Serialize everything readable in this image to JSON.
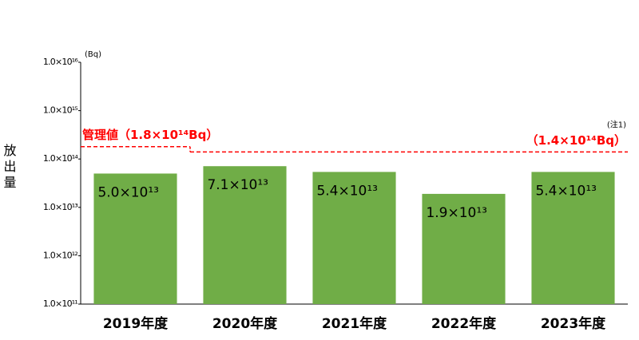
{
  "chart_data": {
    "type": "bar",
    "y_label": "放出量",
    "unit": "(Bq)",
    "log_y": true,
    "categories": [
      "2019年度",
      "2020年度",
      "2021年度",
      "2022年度",
      "2023年度"
    ],
    "values": [
      50000000000000.0,
      71000000000000.0,
      54000000000000.0,
      19000000000000.0,
      54000000000000.0
    ],
    "value_labels": [
      "5.0×10¹³",
      "7.1×10¹³",
      "5.4×10¹³",
      "1.9×10¹³",
      "5.4×10¹³"
    ],
    "color": "#70ad47",
    "ylim": [
      100000000000.0,
      1e+16
    ],
    "yticks": [
      {
        "value": 100000000000.0,
        "label": "1.0×10¹¹"
      },
      {
        "value": 1000000000000.0,
        "label": "1.0×10¹²"
      },
      {
        "value": 10000000000000.0,
        "label": "1.0×10¹³"
      },
      {
        "value": 100000000000000.0,
        "label": "1.0×10¹⁴"
      },
      {
        "value": 1000000000000000.0,
        "label": "1.0×10¹⁵"
      },
      {
        "value": 1e+16,
        "label": "1.0×10¹⁶"
      }
    ],
    "thresholds": [
      {
        "value": 180000000000000.0,
        "label": "管理値（1.8×10¹⁴Bq）",
        "color": "#ff0000"
      },
      {
        "value": 140000000000000.0,
        "label": "（1.4×10¹⁴Bq）",
        "note": "(注1)",
        "color": "#ff0000"
      }
    ]
  }
}
